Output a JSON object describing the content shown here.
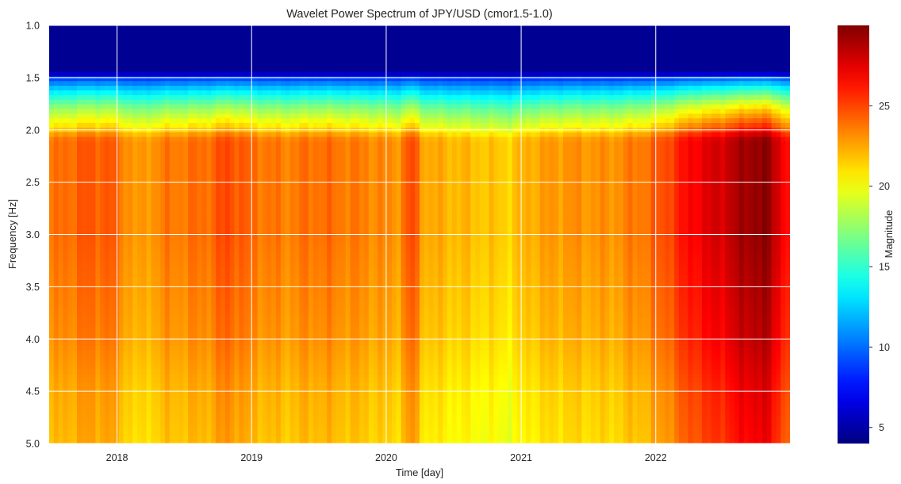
{
  "chart_data": {
    "type": "heatmap",
    "title": "Wavelet Power Spectrum of JPY/USD (cmor1.5-1.0)",
    "xlabel": "Time [day]",
    "ylabel": "Frequency [Hz]",
    "colorbar_label": "Magnitude",
    "colormap": "jet",
    "grid": true,
    "xlim": [
      "2017-07-01",
      "2022-12-31"
    ],
    "ylim": [
      5.0,
      1.0
    ],
    "y_inverted": true,
    "x_tick_labels": [
      "2018",
      "2019",
      "2020",
      "2021",
      "2022"
    ],
    "x_tick_dates": [
      "2018-01-01",
      "2019-01-01",
      "2020-01-01",
      "2021-01-01",
      "2022-01-01"
    ],
    "y_ticks": [
      1.0,
      1.5,
      2.0,
      2.5,
      3.0,
      3.5,
      4.0,
      4.5,
      5.0
    ],
    "y_tick_labels": [
      "1.0",
      "1.5",
      "2.0",
      "2.5",
      "3.0",
      "3.5",
      "4.0",
      "4.5",
      "5.0"
    ],
    "color_range": [
      4,
      30
    ],
    "colorbar_ticks": [
      5,
      10,
      15,
      20,
      25
    ],
    "colorbar_tick_labels": [
      "5",
      "10",
      "15",
      "20",
      "25"
    ],
    "frequency_profile": {
      "frequency": [
        1.0,
        1.45,
        1.5,
        1.6,
        1.7,
        1.8,
        1.9,
        2.0,
        2.05,
        2.1,
        2.5,
        3.0,
        3.5,
        4.0,
        4.5,
        5.0
      ],
      "relative_power": [
        0.0,
        0.0,
        0.22,
        0.4,
        0.55,
        0.68,
        0.78,
        0.88,
        0.95,
        1.0,
        1.0,
        1.0,
        0.98,
        0.96,
        0.92,
        0.9
      ]
    },
    "low_band_magnitude": 4.5,
    "band_magnitude": [
      {
        "date": "2017-07-01",
        "value": 23.5
      },
      {
        "date": "2017-10-01",
        "value": 24.5
      },
      {
        "date": "2017-12-15",
        "value": 24.5
      },
      {
        "date": "2018-03-01",
        "value": 22.5
      },
      {
        "date": "2018-05-01",
        "value": 23.5
      },
      {
        "date": "2018-09-01",
        "value": 24.0
      },
      {
        "date": "2018-11-01",
        "value": 25.0
      },
      {
        "date": "2019-01-01",
        "value": 24.0
      },
      {
        "date": "2019-04-01",
        "value": 23.5
      },
      {
        "date": "2019-07-01",
        "value": 24.0
      },
      {
        "date": "2019-11-01",
        "value": 23.5
      },
      {
        "date": "2020-02-01",
        "value": 23.0
      },
      {
        "date": "2020-03-10",
        "value": 25.0
      },
      {
        "date": "2020-04-15",
        "value": 22.5
      },
      {
        "date": "2020-08-01",
        "value": 22.0
      },
      {
        "date": "2020-12-01",
        "value": 21.5
      },
      {
        "date": "2021-02-01",
        "value": 22.5
      },
      {
        "date": "2021-05-01",
        "value": 23.0
      },
      {
        "date": "2021-09-01",
        "value": 23.0
      },
      {
        "date": "2021-12-15",
        "value": 24.0
      },
      {
        "date": "2022-02-01",
        "value": 25.0
      },
      {
        "date": "2022-04-15",
        "value": 27.0
      },
      {
        "date": "2022-06-01",
        "value": 27.5
      },
      {
        "date": "2022-08-01",
        "value": 28.5
      },
      {
        "date": "2022-09-15",
        "value": 29.5
      },
      {
        "date": "2022-11-01",
        "value": 29.5
      },
      {
        "date": "2022-12-15",
        "value": 27.0
      },
      {
        "date": "2022-12-31",
        "value": 26.0
      }
    ]
  }
}
